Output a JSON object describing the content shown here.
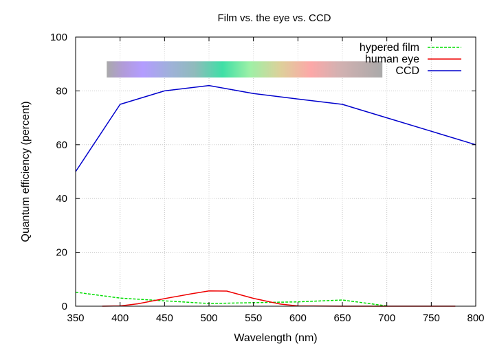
{
  "chart_data": {
    "type": "line",
    "title": "Film vs. the eye vs. CCD",
    "xlabel": "Wavelength (nm)",
    "ylabel": "Quantum efficiency (percent)",
    "xlim": [
      350,
      800
    ],
    "ylim": [
      0,
      100
    ],
    "xticks": [
      350,
      400,
      450,
      500,
      550,
      600,
      650,
      700,
      750,
      800
    ],
    "yticks": [
      0,
      20,
      40,
      60,
      80,
      100
    ],
    "grid": true,
    "legend_position": "top-right",
    "spectrum_band": {
      "x_range": [
        385,
        695
      ],
      "y_range": [
        85,
        91
      ]
    },
    "series": [
      {
        "name": "hypered film",
        "color": "#00dd00",
        "dash": "dashed",
        "x": [
          350,
          400,
          450,
          500,
          550,
          600,
          650,
          700
        ],
        "y": [
          5.2,
          3.0,
          2.0,
          1.0,
          1.3,
          1.6,
          2.3,
          0.1
        ]
      },
      {
        "name": "human eye",
        "color": "#ee0000",
        "dash": "solid",
        "x": [
          380,
          400,
          420,
          450,
          480,
          500,
          520,
          550,
          580,
          600,
          650,
          700,
          777
        ],
        "y": [
          0,
          0.1,
          0.9,
          2.8,
          4.6,
          5.7,
          5.6,
          2.9,
          0.8,
          0.1,
          0,
          0,
          0
        ]
      },
      {
        "name": "CCD",
        "color": "#0000cc",
        "dash": "solid",
        "x": [
          350,
          400,
          450,
          500,
          550,
          600,
          650,
          700,
          750,
          800
        ],
        "y": [
          50,
          75,
          80,
          82,
          79,
          77,
          75,
          70,
          65,
          60
        ]
      }
    ]
  }
}
